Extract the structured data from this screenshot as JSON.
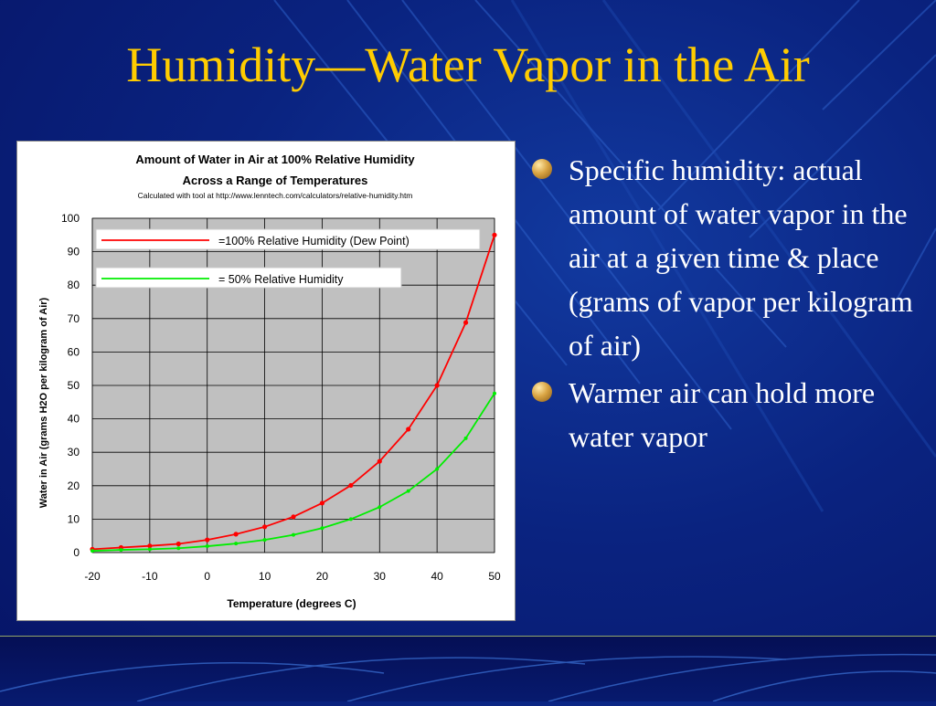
{
  "slide": {
    "title": "Humidity—Water Vapor in the Air",
    "bullets": [
      "Specific humidity: actual amount of water vapor in the air at a given time & place (grams of vapor per kilogram of air)",
      "Warmer air can hold more water vapor"
    ]
  },
  "colors": {
    "title": "#ffcc00",
    "background": "#0a2380",
    "plot_area": "#c0c0c0",
    "series_100": "#ff0000",
    "series_50": "#00ee00"
  },
  "chart_data": {
    "type": "line",
    "title": "Amount of Water in Air at 100% Relative Humidity",
    "title_line2": "Across a Range of Temperatures",
    "subtitle": "Calculated with tool at http://www.lenntech.com/calculators/relative-humidity.htm",
    "xlabel": "Temperature (degrees C)",
    "ylabel": "Water in Air (grams H2O per kilogram of Air)",
    "xlim": [
      -20,
      50
    ],
    "ylim": [
      0,
      100
    ],
    "x_ticks": [
      "-20",
      "-10",
      "0",
      "10",
      "20",
      "30",
      "40",
      "50"
    ],
    "y_ticks": [
      "0",
      "10",
      "20",
      "30",
      "40",
      "50",
      "60",
      "70",
      "80",
      "90",
      "100"
    ],
    "grid": true,
    "legend_position": "top-left",
    "x": [
      -20,
      -15,
      -10,
      -5,
      0,
      5,
      10,
      15,
      20,
      25,
      30,
      35,
      40,
      45,
      50
    ],
    "series": [
      {
        "name": "=100% Relative Humidity (Dew Point)",
        "color": "#ff0000",
        "values": [
          1.0,
          1.5,
          2.0,
          2.6,
          3.8,
          5.5,
          7.7,
          10.7,
          14.8,
          20.1,
          27.3,
          36.9,
          50.0,
          68.8,
          95.0
        ]
      },
      {
        "name": "=   50% Relative Humidity",
        "color": "#00ee00",
        "values": [
          0.5,
          0.8,
          1.0,
          1.3,
          1.9,
          2.7,
          3.8,
          5.3,
          7.3,
          10.0,
          13.6,
          18.4,
          25.0,
          34.2,
          47.6
        ]
      }
    ]
  }
}
